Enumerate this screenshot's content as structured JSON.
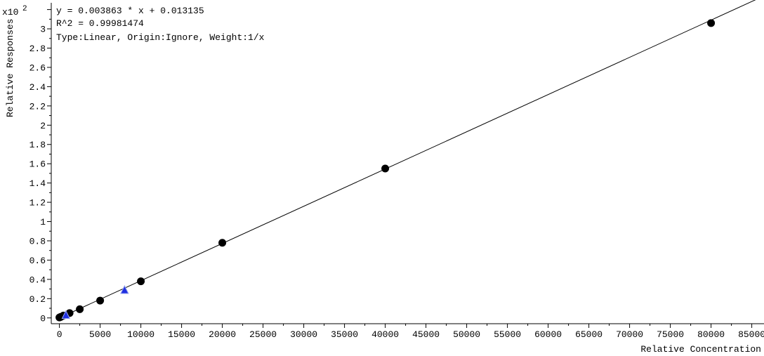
{
  "chart_data": {
    "type": "scatter",
    "equation": "y = 0.003863 * x  + 0.013135",
    "r_squared": "R^2 = 0.99981474",
    "fit_info": "Type:Linear, Origin:Ignore, Weight:1/x",
    "y_multiplier": "x10",
    "y_multiplier_exp": "2",
    "xlabel": "Relative Concentration",
    "ylabel": "Relative Responses",
    "xlim": [
      -1000,
      86500
    ],
    "ylim": [
      -0.06,
      3.27
    ],
    "x_ticks": [
      0,
      5000,
      10000,
      15000,
      20000,
      25000,
      30000,
      35000,
      40000,
      45000,
      50000,
      55000,
      60000,
      65000,
      70000,
      75000,
      80000,
      85000
    ],
    "x_tick_labels": [
      "0",
      "5000",
      "10000",
      "15000",
      "20000",
      "25000",
      "30000",
      "35000",
      "40000",
      "45000",
      "50000",
      "55000",
      "60000",
      "65000",
      "70000",
      "75000",
      "80000",
      "85000"
    ],
    "y_ticks": [
      0,
      0.2,
      0.4,
      0.6,
      0.8,
      1,
      1.2,
      1.4,
      1.6,
      1.8,
      2,
      2.2,
      2.4,
      2.6,
      2.8,
      3
    ],
    "y_tick_labels": [
      "0",
      "0.2",
      "0.4",
      "0.6",
      "0.8",
      "1",
      "1.2",
      "1.4",
      "1.6",
      "1.8",
      "2",
      "2.2",
      "2.4",
      "2.6",
      "2.8",
      "3"
    ],
    "fit_line": {
      "slope": 0.003863,
      "intercept": 0.013135,
      "x_range": [
        0,
        86500
      ]
    },
    "series": [
      {
        "marker": "circle",
        "color": "#000000",
        "x": [
          0,
          100,
          200,
          500,
          1250,
          2500,
          5000,
          10000,
          20000,
          40000,
          80000
        ],
        "y": [
          0.005,
          0.008,
          0.012,
          0.025,
          0.05,
          0.09,
          0.18,
          0.38,
          0.78,
          1.55,
          3.06
        ]
      },
      {
        "marker": "triangle",
        "color": "#1f2fe0",
        "x": [
          800,
          8000
        ],
        "y": [
          0.03,
          0.29
        ]
      }
    ]
  }
}
